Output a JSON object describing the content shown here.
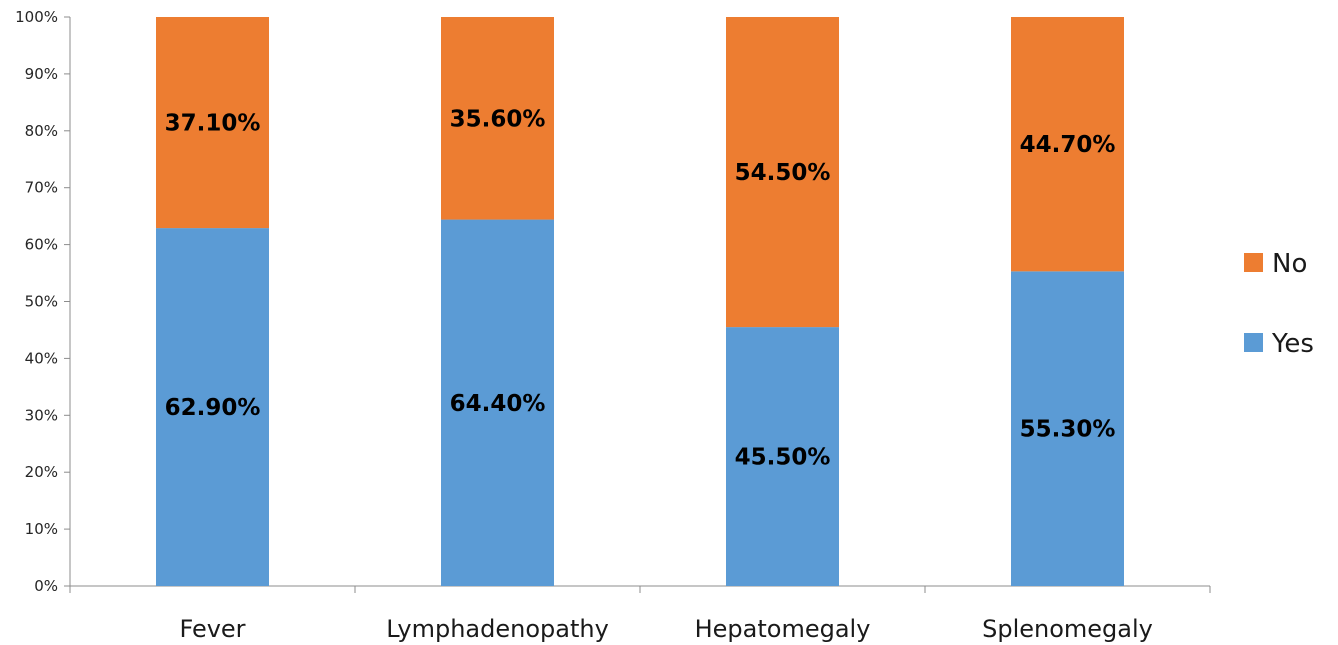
{
  "chart_data": {
    "type": "bar",
    "stacked": true,
    "categories": [
      "Fever",
      "Lymphadenopathy",
      "Hepatomegaly",
      "Splenomegaly"
    ],
    "series": [
      {
        "name": "Yes",
        "values": [
          62.9,
          64.4,
          45.5,
          55.3
        ],
        "labels": [
          "62.90%",
          "64.40%",
          "45.50%",
          "55.30%"
        ],
        "color": "#5b9bd5"
      },
      {
        "name": "No",
        "values": [
          37.1,
          35.6,
          54.5,
          44.7
        ],
        "labels": [
          "37.10%",
          "35.60%",
          "54.50%",
          "44.70%"
        ],
        "color": "#ed7d31"
      }
    ],
    "y_ticks": [
      "0%",
      "10%",
      "20%",
      "30%",
      "40%",
      "50%",
      "60%",
      "70%",
      "80%",
      "90%",
      "100%"
    ],
    "ylim": [
      0,
      100
    ],
    "grid": false,
    "legend": {
      "position": "right",
      "order": [
        "No",
        "Yes"
      ]
    }
  }
}
